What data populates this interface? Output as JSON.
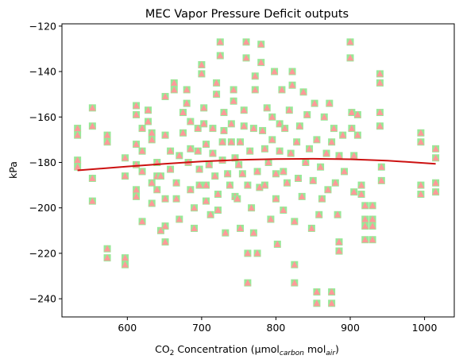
{
  "chart_data": {
    "type": "scatter",
    "title": "MEC Vapor Pressure Deficit outputs",
    "xlabel": {
      "prefix": "CO",
      "sub1": "2",
      "middle": " Concentration (µmol",
      "sub2": "carbon",
      "middle2": " mol",
      "sub3": "air",
      "suffix": ")"
    },
    "ylabel": "kPa",
    "xlim": [
      512,
      1040
    ],
    "ylim": [
      -248,
      -119
    ],
    "xticks": [
      600,
      700,
      800,
      900,
      1000
    ],
    "yticks": [
      -240,
      -220,
      -200,
      -180,
      -160,
      -140,
      -120
    ],
    "grid": false,
    "colors": {
      "square_marker": "#98e898",
      "triangle_marker": "#ff9999",
      "trend_line": "#cc1111"
    },
    "series": [
      {
        "marker": "square-with-triangle",
        "points": [
          [
            533,
            -165
          ],
          [
            533,
            -168
          ],
          [
            533,
            -179
          ],
          [
            533,
            -182
          ],
          [
            553,
            -156
          ],
          [
            553,
            -164
          ],
          [
            553,
            -187
          ],
          [
            553,
            -197
          ],
          [
            573,
            -168
          ],
          [
            573,
            -171
          ],
          [
            573,
            -218
          ],
          [
            573,
            -222
          ],
          [
            597,
            -178
          ],
          [
            597,
            -186
          ],
          [
            597,
            -222
          ],
          [
            597,
            -225
          ],
          [
            612,
            -155
          ],
          [
            612,
            -159
          ],
          [
            612,
            -192
          ],
          [
            612,
            -195
          ],
          [
            612,
            -172
          ],
          [
            612,
            -181
          ],
          [
            620,
            -165
          ],
          [
            620,
            -175
          ],
          [
            620,
            -184
          ],
          [
            620,
            -206
          ],
          [
            628,
            -157
          ],
          [
            628,
            -162
          ],
          [
            633,
            -167
          ],
          [
            633,
            -170
          ],
          [
            633,
            -189
          ],
          [
            633,
            -198
          ],
          [
            640,
            -180
          ],
          [
            640,
            -186
          ],
          [
            640,
            -192
          ],
          [
            645,
            -186
          ],
          [
            645,
            -210
          ],
          [
            651,
            -151
          ],
          [
            651,
            -168
          ],
          [
            651,
            -196
          ],
          [
            651,
            -208
          ],
          [
            651,
            -215
          ],
          [
            658,
            -175
          ],
          [
            658,
            -183
          ],
          [
            663,
            -145
          ],
          [
            663,
            -148
          ],
          [
            666,
            -189
          ],
          [
            666,
            -196
          ],
          [
            670,
            -177
          ],
          [
            670,
            -205
          ],
          [
            675,
            -158
          ],
          [
            675,
            -167
          ],
          [
            680,
            -148
          ],
          [
            680,
            -154
          ],
          [
            682,
            -180
          ],
          [
            685,
            -162
          ],
          [
            685,
            -174
          ],
          [
            685,
            -192
          ],
          [
            690,
            -200
          ],
          [
            690,
            -209
          ],
          [
            695,
            -165
          ],
          [
            695,
            -175
          ],
          [
            697,
            -183
          ],
          [
            697,
            -190
          ],
          [
            700,
            -137
          ],
          [
            700,
            -141
          ],
          [
            703,
            -156
          ],
          [
            703,
            -163
          ],
          [
            706,
            -172
          ],
          [
            706,
            -190
          ],
          [
            706,
            -197
          ],
          [
            710,
            -181
          ],
          [
            712,
            -203
          ],
          [
            715,
            -165
          ],
          [
            715,
            -176
          ],
          [
            718,
            -186
          ],
          [
            720,
            -145
          ],
          [
            720,
            -150
          ],
          [
            722,
            -194
          ],
          [
            722,
            -201
          ],
          [
            725,
            -127
          ],
          [
            725,
            -133
          ],
          [
            728,
            -171
          ],
          [
            728,
            -179
          ],
          [
            730,
            -158
          ],
          [
            730,
            -166
          ],
          [
            732,
            -211
          ],
          [
            735,
            -185
          ],
          [
            738,
            -190
          ],
          [
            740,
            -163
          ],
          [
            740,
            -171
          ],
          [
            743,
            -148
          ],
          [
            743,
            -153
          ],
          [
            745,
            -178
          ],
          [
            745,
            -195
          ],
          [
            748,
            -196
          ],
          [
            750,
            -181
          ],
          [
            752,
            -171
          ],
          [
            752,
            -209
          ],
          [
            755,
            -185
          ],
          [
            757,
            -157
          ],
          [
            757,
            -164
          ],
          [
            760,
            -127
          ],
          [
            760,
            -134
          ],
          [
            762,
            -190
          ],
          [
            762,
            -220
          ],
          [
            762,
            -233
          ],
          [
            765,
            -175
          ],
          [
            767,
            -200
          ],
          [
            770,
            -165
          ],
          [
            770,
            -211
          ],
          [
            772,
            -142
          ],
          [
            772,
            -148
          ],
          [
            775,
            -184
          ],
          [
            775,
            -220
          ],
          [
            778,
            -191
          ],
          [
            780,
            -128
          ],
          [
            780,
            -136
          ],
          [
            782,
            -166
          ],
          [
            785,
            -174
          ],
          [
            785,
            -190
          ],
          [
            788,
            -156
          ],
          [
            790,
            -180
          ],
          [
            793,
            -205
          ],
          [
            795,
            -160
          ],
          [
            795,
            -170
          ],
          [
            798,
            -140
          ],
          [
            800,
            -185
          ],
          [
            800,
            -196
          ],
          [
            802,
            -216
          ],
          [
            805,
            -163
          ],
          [
            805,
            -175
          ],
          [
            808,
            -148
          ],
          [
            810,
            -184
          ],
          [
            810,
            -201
          ],
          [
            812,
            -165
          ],
          [
            815,
            -189
          ],
          [
            818,
            -157
          ],
          [
            820,
            -176
          ],
          [
            822,
            -140
          ],
          [
            822,
            -146
          ],
          [
            825,
            -206
          ],
          [
            825,
            -225
          ],
          [
            825,
            -233
          ],
          [
            828,
            -171
          ],
          [
            830,
            -187
          ],
          [
            832,
            -164
          ],
          [
            835,
            -195
          ],
          [
            837,
            -149
          ],
          [
            840,
            -180
          ],
          [
            842,
            -159
          ],
          [
            845,
            -174
          ],
          [
            848,
            -209
          ],
          [
            850,
            -188
          ],
          [
            852,
            -154
          ],
          [
            855,
            -170
          ],
          [
            855,
            -237
          ],
          [
            855,
            -242
          ],
          [
            858,
            -203
          ],
          [
            860,
            -182
          ],
          [
            862,
            -196
          ],
          [
            865,
            -160
          ],
          [
            868,
            -176
          ],
          [
            870,
            -192
          ],
          [
            872,
            -154
          ],
          [
            875,
            -171
          ],
          [
            875,
            -237
          ],
          [
            875,
            -242
          ],
          [
            878,
            -165
          ],
          [
            880,
            -189
          ],
          [
            883,
            -203
          ],
          [
            885,
            -177
          ],
          [
            885,
            -215
          ],
          [
            885,
            -219
          ],
          [
            890,
            -168
          ],
          [
            892,
            -184
          ],
          [
            900,
            -127
          ],
          [
            900,
            -134
          ],
          [
            902,
            -158
          ],
          [
            902,
            -165
          ],
          [
            905,
            -177
          ],
          [
            905,
            -193
          ],
          [
            910,
            -159
          ],
          [
            910,
            -168
          ],
          [
            915,
            -190
          ],
          [
            915,
            -194
          ],
          [
            920,
            -199
          ],
          [
            920,
            -205
          ],
          [
            920,
            -208
          ],
          [
            920,
            -214
          ],
          [
            930,
            -199
          ],
          [
            930,
            -205
          ],
          [
            930,
            -208
          ],
          [
            930,
            -214
          ],
          [
            940,
            -141
          ],
          [
            940,
            -145
          ],
          [
            940,
            -158
          ],
          [
            940,
            -164
          ],
          [
            942,
            -182
          ],
          [
            942,
            -188
          ],
          [
            995,
            -167
          ],
          [
            995,
            -171
          ],
          [
            995,
            -190
          ],
          [
            995,
            -194
          ],
          [
            1015,
            -174
          ],
          [
            1015,
            -178
          ],
          [
            1015,
            -189
          ],
          [
            1015,
            -193
          ]
        ]
      }
    ],
    "trend_line": {
      "x": [
        533,
        600,
        650,
        700,
        750,
        800,
        850,
        900,
        950,
        1015
      ],
      "y": [
        -183.5,
        -181.8,
        -180.6,
        -179.6,
        -178.9,
        -178.5,
        -178.4,
        -178.6,
        -179.2,
        -180.6
      ]
    }
  }
}
